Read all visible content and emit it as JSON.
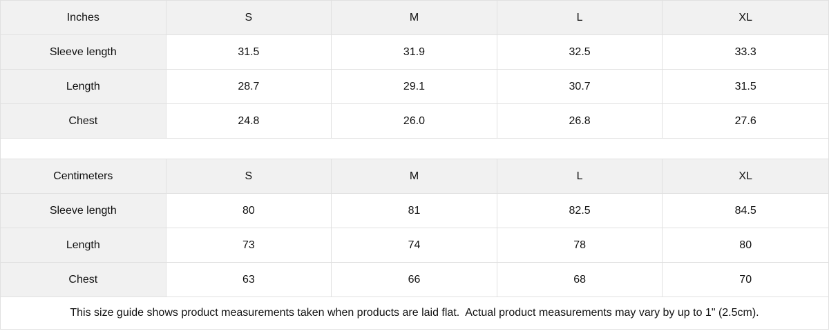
{
  "chart_data": [
    {
      "type": "table",
      "title": "Inches",
      "columns": [
        "Inches",
        "S",
        "M",
        "L",
        "XL"
      ],
      "rows": [
        [
          "Sleeve length",
          "31.5",
          "31.9",
          "32.5",
          "33.3"
        ],
        [
          "Length",
          "28.7",
          "29.1",
          "30.7",
          "31.5"
        ],
        [
          "Chest",
          "24.8",
          "26.0",
          "26.8",
          "27.6"
        ]
      ]
    },
    {
      "type": "table",
      "title": "Centimeters",
      "columns": [
        "Centimeters",
        "S",
        "M",
        "L",
        "XL"
      ],
      "rows": [
        [
          "Sleeve length",
          "80",
          "81",
          "82.5",
          "84.5"
        ],
        [
          "Length",
          "73",
          "74",
          "78",
          "80"
        ],
        [
          "Chest",
          "63",
          "66",
          "68",
          "70"
        ]
      ]
    }
  ],
  "footer_note": "This size guide shows product measurements taken when products are laid flat.  Actual product measurements may vary by up to 1\" (2.5cm).",
  "colors": {
    "header_bg": "#f1f1f1",
    "border": "#e0e0e0",
    "text": "#111111",
    "cell_bg": "#ffffff"
  }
}
